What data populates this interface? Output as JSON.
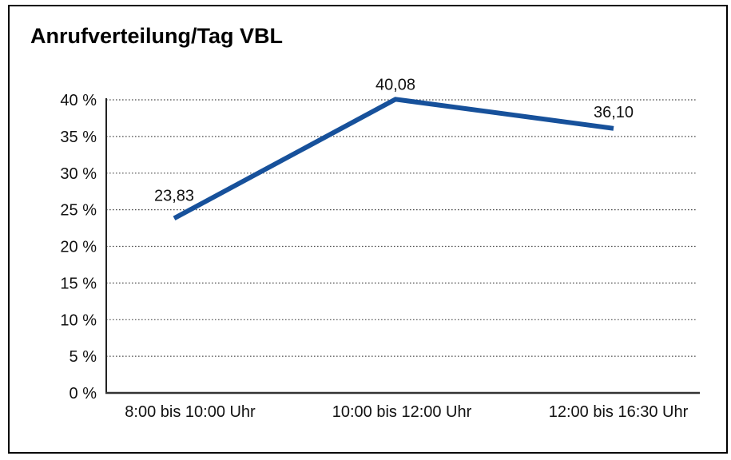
{
  "title": "Anrufverteilung/Tag VBL",
  "chart_data": {
    "type": "line",
    "title": "Anrufverteilung/Tag VBL",
    "categories": [
      "8:00 bis 10:00 Uhr",
      "10:00 bis 12:00 Uhr",
      "12:00 bis 16:30 Uhr"
    ],
    "values": [
      23.83,
      40.08,
      36.1
    ],
    "point_labels": [
      "23,83",
      "40,08",
      "36,10"
    ],
    "xlabel": "",
    "ylabel": "",
    "ylim": [
      0,
      40
    ],
    "ytick_step": 5,
    "ytick_labels": [
      "40 %",
      "35 %",
      "30 %",
      "25 %",
      "20 %",
      "15 %",
      "10 %",
      "5 %",
      "0 %"
    ],
    "grid": "horizontal-dotted",
    "legend": "none",
    "line_color": "#17519B",
    "grid_color": "#4d4d4d",
    "axis_color": "#333333",
    "text_color": "#111111"
  }
}
